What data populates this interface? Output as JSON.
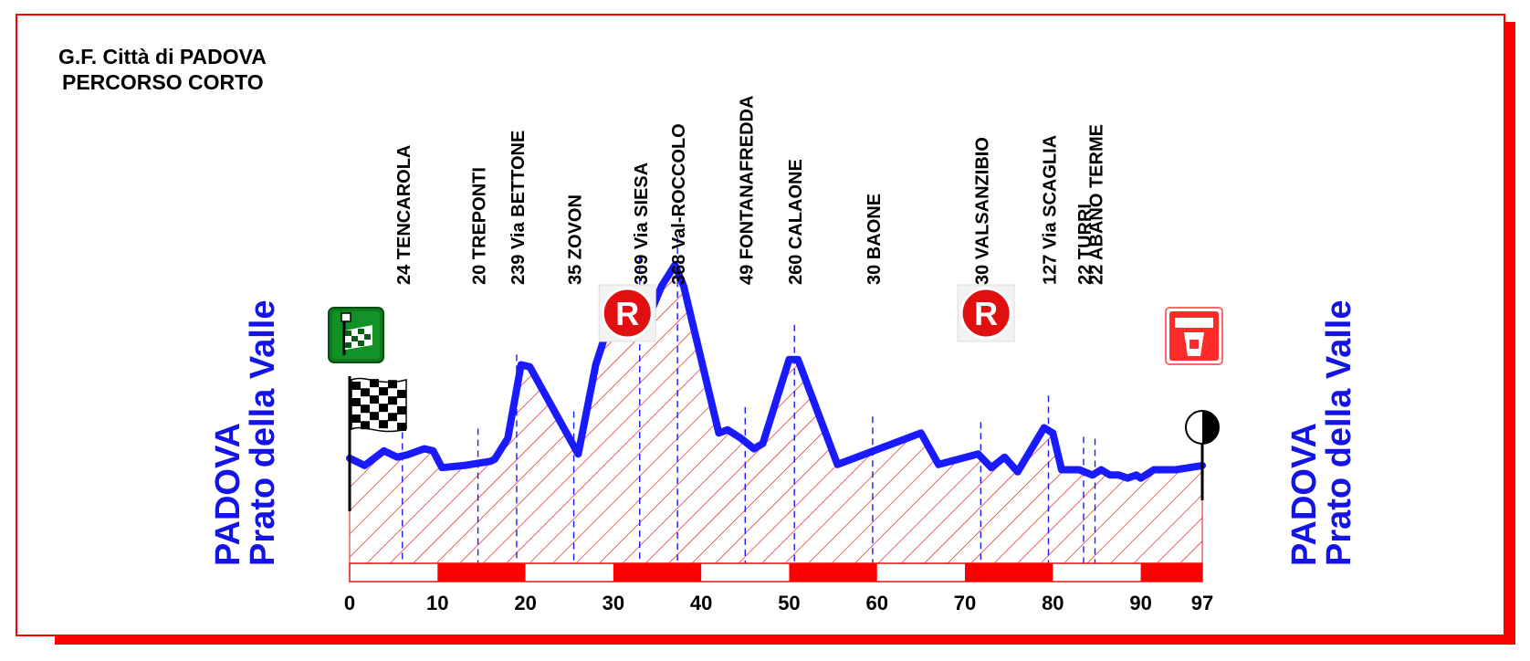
{
  "title_line1": "G.F. Città di PADOVA",
  "title_line2": "PERCORSO CORTO",
  "start_place": {
    "city": "PADOVA",
    "square": "Prato della Valle"
  },
  "finish_place": {
    "city": "PADOVA",
    "square": "Prato della Valle"
  },
  "colors": {
    "frame": "#ff0000",
    "profile": "#1a1aff",
    "hatch": "#e11414",
    "text": "#000000",
    "place": "#1414e6"
  },
  "icons": {
    "start": "green-start-flag-icon",
    "checkered": "checkered-flag-icon",
    "refreshment": "refreshment-r-icon",
    "finish": "red-finish-icon",
    "finish_marker": "finish-line-marker-icon"
  },
  "refreshment_label": "R",
  "chart_data": {
    "type": "area",
    "xlim": [
      0,
      97
    ],
    "x_ticks": [
      0,
      10,
      20,
      30,
      40,
      50,
      60,
      70,
      80,
      90,
      97
    ],
    "y_unit": "m",
    "profile": [
      [
        0,
        21
      ],
      [
        1.7,
        14
      ],
      [
        3.9,
        28
      ],
      [
        5.4,
        22
      ],
      [
        6.5,
        24
      ],
      [
        8.5,
        30
      ],
      [
        9.5,
        28
      ],
      [
        10.5,
        12
      ],
      [
        13,
        14
      ],
      [
        16,
        18
      ],
      [
        16.5,
        20
      ],
      [
        18,
        40
      ],
      [
        19.5,
        110
      ],
      [
        20.5,
        108
      ],
      [
        26,
        25
      ],
      [
        28,
        110
      ],
      [
        30.5,
        175
      ],
      [
        31.5,
        170
      ],
      [
        33,
        180
      ],
      [
        34,
        155
      ],
      [
        35.5,
        185
      ],
      [
        37,
        205
      ],
      [
        38,
        185
      ],
      [
        42,
        45
      ],
      [
        43,
        48
      ],
      [
        44.5,
        40
      ],
      [
        46,
        30
      ],
      [
        47,
        35
      ],
      [
        50,
        115
      ],
      [
        51,
        115
      ],
      [
        55.5,
        15
      ],
      [
        65,
        45
      ],
      [
        67,
        15
      ],
      [
        71.5,
        25
      ],
      [
        73,
        12
      ],
      [
        74.5,
        22
      ],
      [
        76,
        8
      ],
      [
        79,
        50
      ],
      [
        80,
        45
      ],
      [
        81,
        10
      ],
      [
        83,
        10
      ],
      [
        84.5,
        5
      ],
      [
        85.5,
        10
      ],
      [
        86.5,
        5
      ],
      [
        87.5,
        5
      ],
      [
        88.5,
        2
      ],
      [
        89.5,
        5
      ],
      [
        90,
        2
      ],
      [
        91.5,
        10
      ],
      [
        94,
        10
      ],
      [
        97,
        14
      ]
    ],
    "waypoints": [
      {
        "km": 6.0,
        "label": "24  TENCAROLA",
        "elev": 24
      },
      {
        "km": 14.6,
        "label": "20  TREPONTI",
        "elev": 20
      },
      {
        "km": 19.0,
        "label": "239 Via BETTONE",
        "elev": 239
      },
      {
        "km": 25.5,
        "label": "35  ZOVON",
        "elev": 35
      },
      {
        "km": 33.0,
        "label": "309 Via SIESA",
        "elev": 309
      },
      {
        "km": 37.3,
        "label": "368 Val-ROCCOLO",
        "elev": 368
      },
      {
        "km": 45.0,
        "label": "49  FONTANAFREDDA",
        "elev": 49
      },
      {
        "km": 50.6,
        "label": "260 CALAONE",
        "elev": 260
      },
      {
        "km": 59.5,
        "label": "30  BAONE",
        "elev": 30
      },
      {
        "km": 71.8,
        "label": "30 VALSANZIBIO",
        "elev": 30
      },
      {
        "km": 79.5,
        "label": "127 Via SCAGLIA",
        "elev": 127
      },
      {
        "km": 83.5,
        "label": "22  TURRI",
        "elev": 22
      },
      {
        "km": 84.8,
        "label": "22  ABANO TERME",
        "elev": 22
      }
    ],
    "refreshment_points_km": [
      31.6,
      72.4
    ]
  }
}
